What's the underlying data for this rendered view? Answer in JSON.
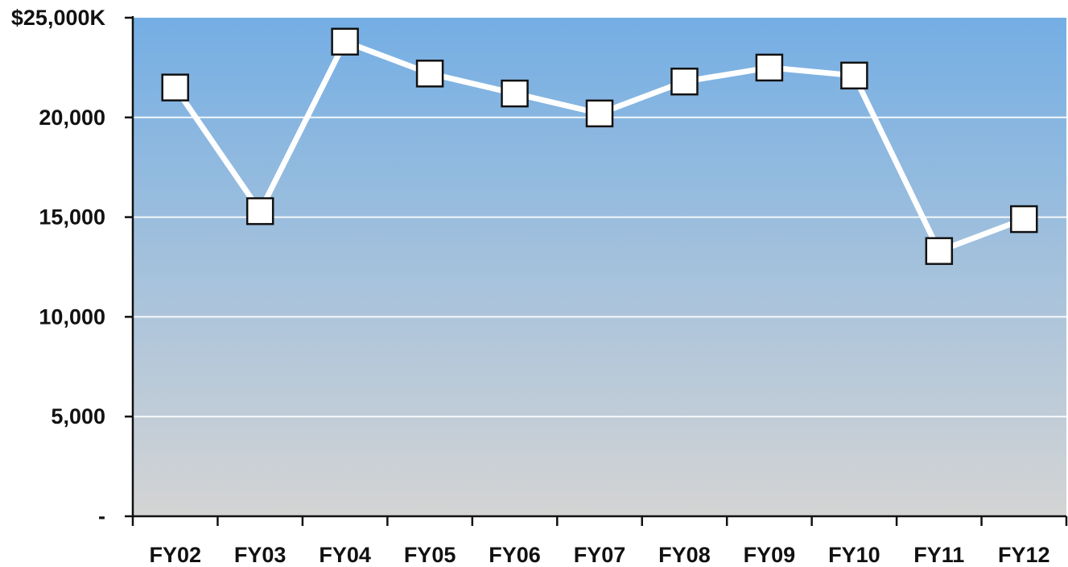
{
  "chart_data": {
    "type": "line",
    "title": "",
    "xlabel": "",
    "ylabel": "",
    "categories": [
      "FY02",
      "FY03",
      "FY04",
      "FY05",
      "FY06",
      "FY07",
      "FY08",
      "FY09",
      "FY10",
      "FY11",
      "FY12"
    ],
    "series": [
      {
        "values": [
          21500,
          15300,
          23800,
          22200,
          21200,
          20200,
          21800,
          22500,
          22100,
          13300,
          14900
        ]
      }
    ],
    "ylim": [
      0,
      25000
    ],
    "yticks": [
      {
        "value": 0,
        "label": "-"
      },
      {
        "value": 5000,
        "label": "5,000"
      },
      {
        "value": 10000,
        "label": "10,000"
      },
      {
        "value": 15000,
        "label": "15,000"
      },
      {
        "value": 20000,
        "label": "20,000"
      },
      {
        "value": 25000,
        "label": "$25,000K"
      }
    ],
    "grid": true,
    "legend": "none",
    "colors": {
      "background_top": "#74aee4",
      "background_bottom": "#d4d4d4",
      "line": "#ffffff",
      "marker_fill": "#ffffff",
      "marker_stroke": "#111111",
      "axis": "#111111",
      "gridline": "#ffffff"
    }
  }
}
